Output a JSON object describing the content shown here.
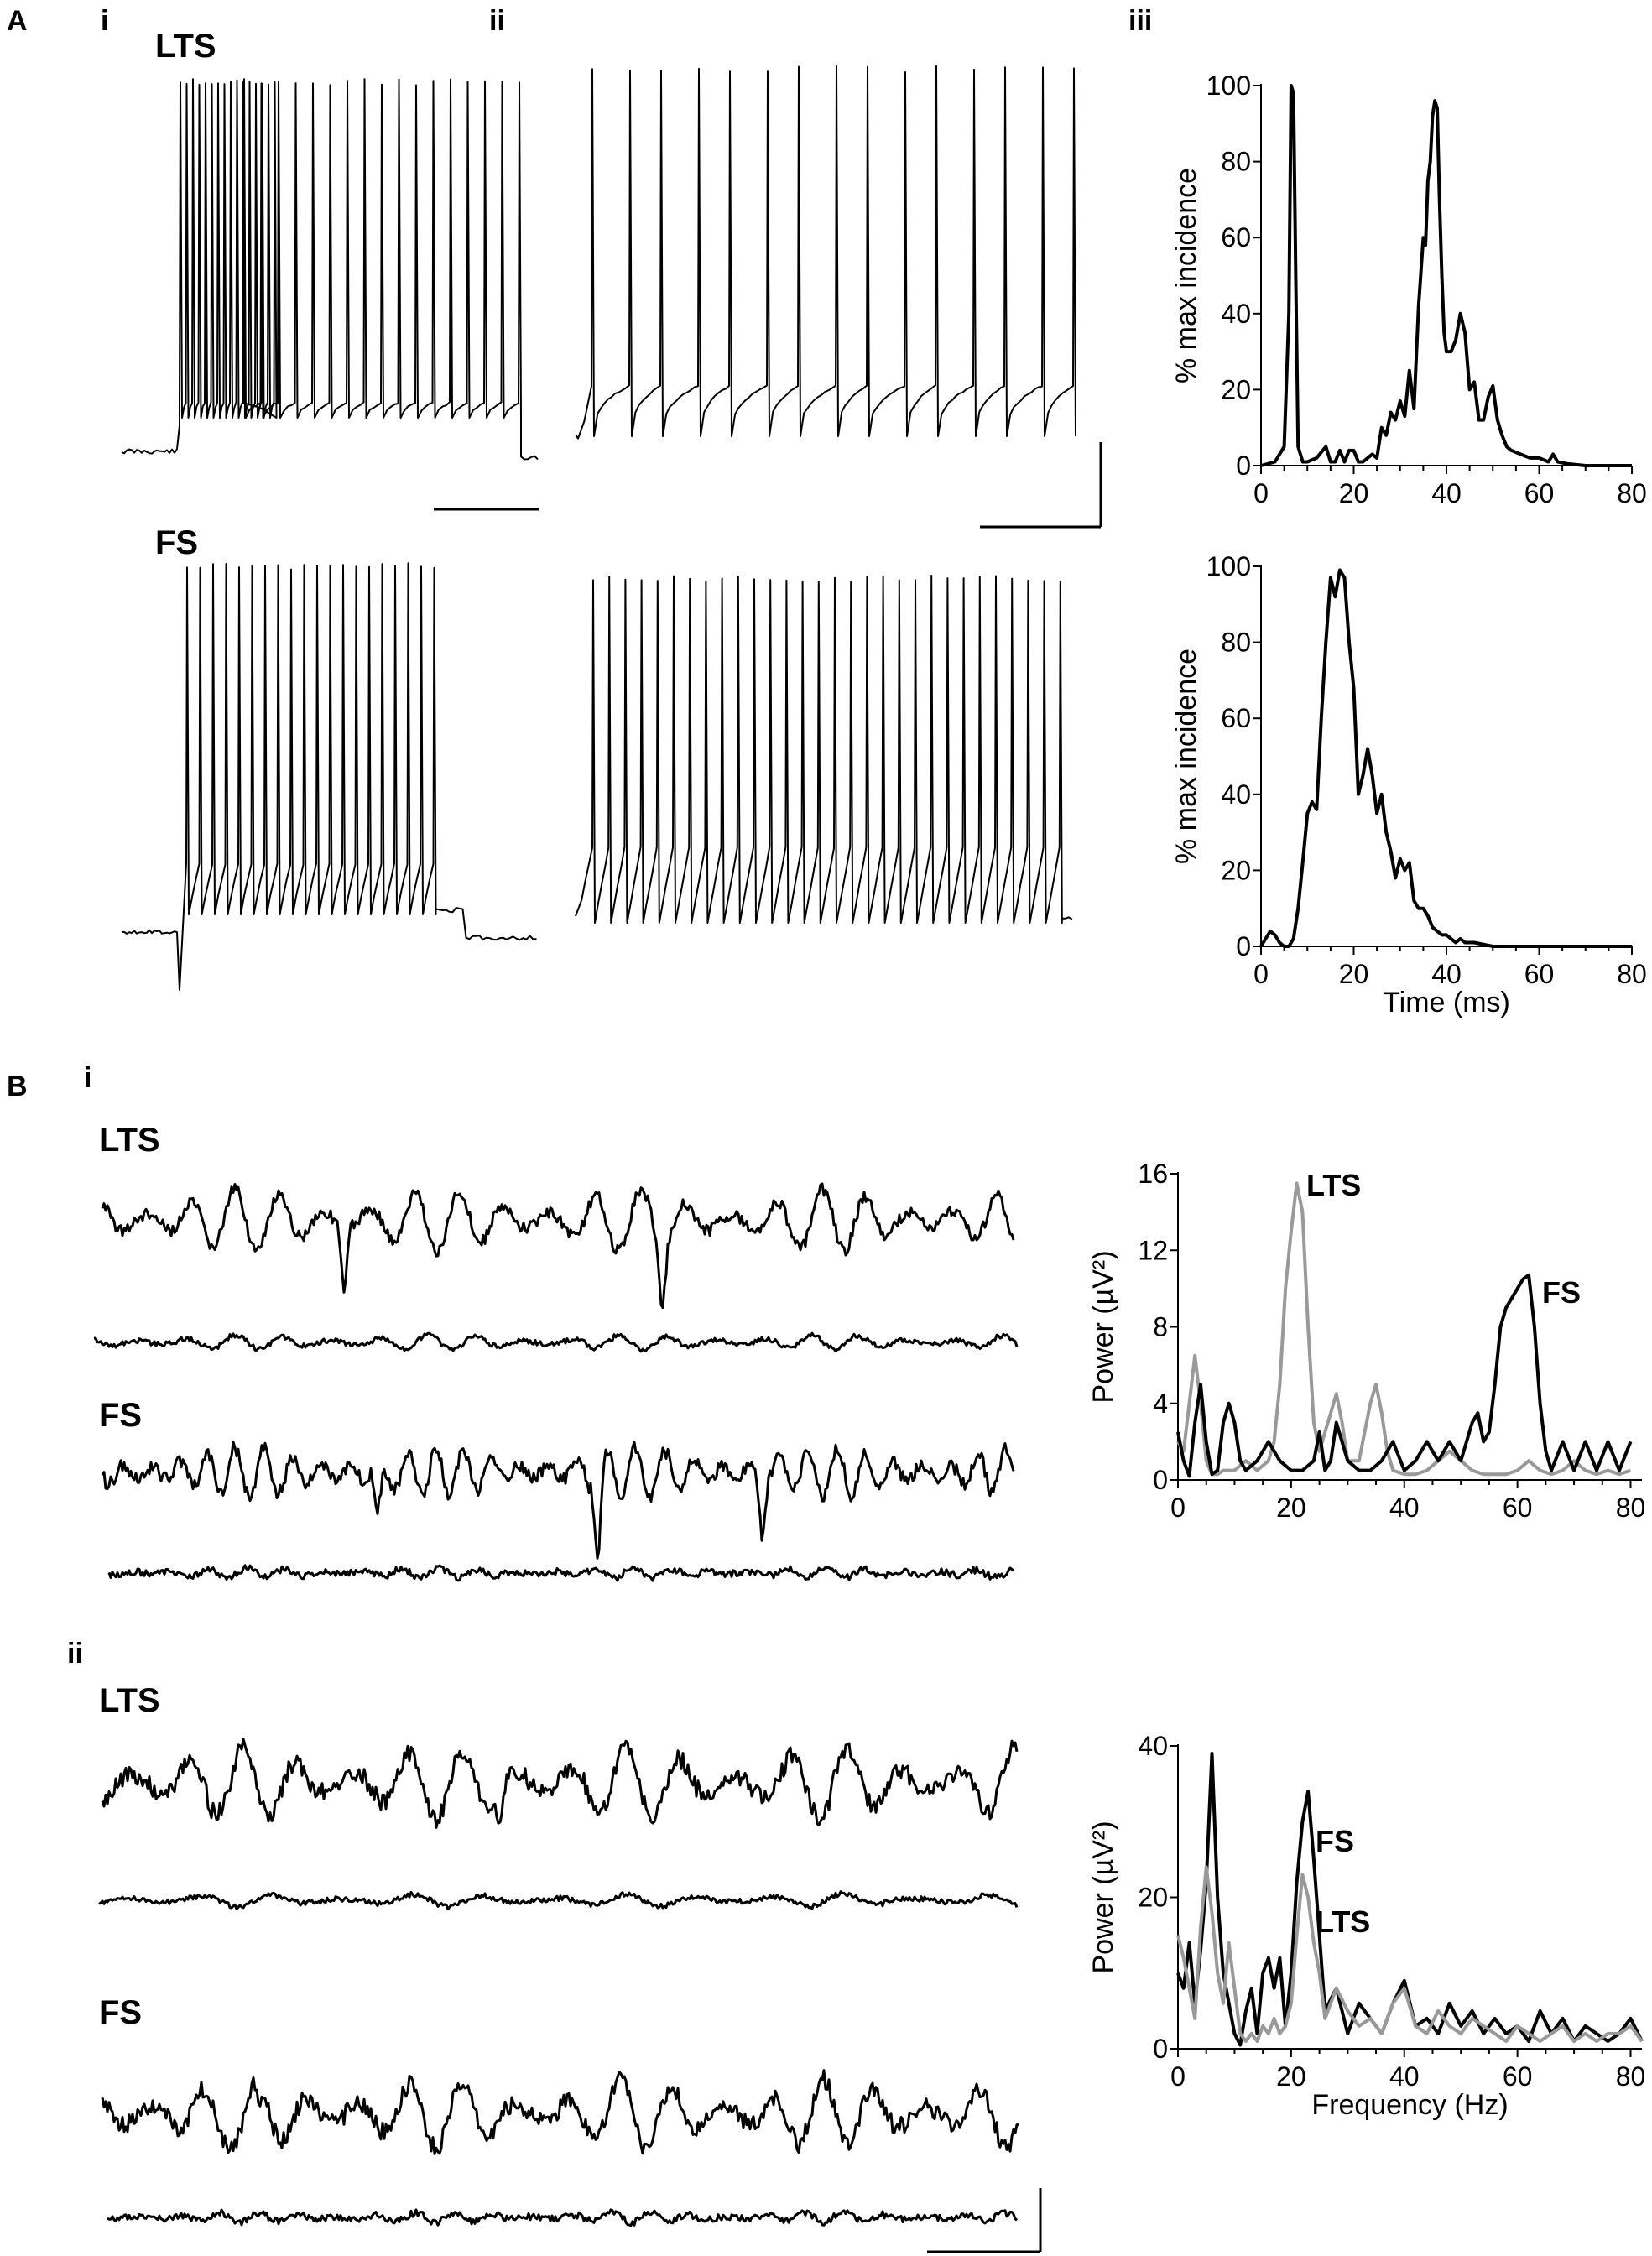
{
  "figure": {
    "panel_a": "A",
    "panel_b": "B",
    "sub_a_i": "i",
    "sub_a_ii": "ii",
    "sub_a_iii": "iii",
    "sub_b_i": "i",
    "sub_b_ii": "ii",
    "lts": "LTS",
    "fs": "FS"
  },
  "colors": {
    "black": "#000000",
    "gray": "#999999"
  },
  "chart_data": [
    {
      "id": "a_iii_lts",
      "type": "line",
      "title": "",
      "xlabel": "",
      "ylabel": "% max incidence",
      "xlim": [
        0,
        80
      ],
      "ylim": [
        0,
        100
      ],
      "xticks": [
        0,
        20,
        40,
        60,
        80
      ],
      "yticks": [
        0,
        20,
        40,
        60,
        80,
        100
      ],
      "series": [
        {
          "color": "#000000",
          "x": [
            0,
            3,
            5,
            6,
            6.5,
            7,
            7.5,
            8,
            9,
            10,
            12,
            14,
            15,
            16,
            17,
            18,
            19,
            20,
            21,
            22,
            24,
            25,
            26,
            27,
            28,
            29,
            30,
            31,
            32,
            33,
            34,
            35,
            35.5,
            36,
            36.5,
            37,
            37.5,
            38,
            38.5,
            39,
            39.5,
            40,
            41,
            42,
            43,
            44,
            45,
            46,
            47,
            48,
            49,
            50,
            51,
            52,
            53,
            54,
            56,
            58,
            60,
            62,
            63,
            64,
            66,
            70,
            80
          ],
          "y": [
            0,
            1,
            5,
            40,
            100,
            98,
            50,
            5,
            1,
            1,
            2,
            5,
            1,
            1,
            4,
            1,
            4,
            4,
            1,
            1,
            3,
            2,
            10,
            8,
            14,
            12,
            17,
            13,
            25,
            15,
            42,
            60,
            58,
            75,
            80,
            92,
            96,
            94,
            70,
            50,
            35,
            30,
            30,
            33,
            40,
            35,
            20,
            22,
            12,
            12,
            18,
            21,
            12,
            8,
            5,
            4,
            3,
            2,
            2,
            1,
            3,
            1,
            0.5,
            0,
            0
          ]
        }
      ]
    },
    {
      "id": "a_iii_fs",
      "type": "line",
      "title": "",
      "xlabel": "Time (ms)",
      "ylabel": "% max incidence",
      "xlim": [
        0,
        80
      ],
      "ylim": [
        0,
        100
      ],
      "xticks": [
        0,
        20,
        40,
        60,
        80
      ],
      "yticks": [
        0,
        20,
        40,
        60,
        80,
        100
      ],
      "series": [
        {
          "color": "#000000",
          "x": [
            0,
            1,
            2,
            3,
            4,
            5,
            6,
            7,
            8,
            9,
            10,
            11,
            12,
            13,
            14,
            15,
            16,
            17,
            18,
            19,
            20,
            21,
            22,
            23,
            24,
            25,
            26,
            27,
            28,
            29,
            30,
            31,
            32,
            33,
            34,
            35,
            36,
            37,
            38,
            39,
            40,
            41,
            42,
            43,
            44,
            45,
            46,
            48,
            50,
            55,
            60,
            70,
            80
          ],
          "y": [
            0,
            2,
            4,
            3,
            1,
            0,
            0,
            2,
            10,
            22,
            35,
            38,
            36,
            60,
            80,
            97,
            92,
            99,
            97,
            80,
            68,
            40,
            45,
            52,
            45,
            35,
            40,
            30,
            25,
            18,
            23,
            20,
            22,
            12,
            10,
            10,
            8,
            5,
            4,
            3,
            3,
            2,
            1,
            2,
            1,
            1,
            1,
            0.5,
            0,
            0,
            0,
            0,
            0
          ],
          "name": ""
        }
      ]
    },
    {
      "id": "b_i",
      "type": "line",
      "title": "",
      "xlabel": "",
      "ylabel": "Power (µV²)",
      "xlim": [
        0,
        82
      ],
      "ylim": [
        0,
        16
      ],
      "xticks": [
        0,
        20,
        40,
        60,
        80
      ],
      "yticks": [
        0,
        4,
        8,
        12,
        16
      ],
      "series": [
        {
          "name": "LTS",
          "color": "#999999",
          "x": [
            0,
            1,
            2,
            3,
            4,
            5,
            6,
            7,
            8,
            10,
            12,
            14,
            16,
            17,
            18,
            19,
            20,
            21,
            22,
            23,
            24,
            25,
            26,
            27,
            28,
            29,
            30,
            32,
            33,
            34,
            35,
            36,
            37,
            38,
            40,
            42,
            44,
            46,
            48,
            50,
            52,
            54,
            56,
            58,
            60,
            62,
            64,
            66,
            68,
            70,
            72,
            74,
            76,
            78,
            80
          ],
          "y": [
            2,
            1.5,
            4,
            6.5,
            4,
            1,
            0.3,
            0.3,
            0.5,
            0.5,
            1,
            0.5,
            1,
            2,
            5,
            10,
            13,
            15.5,
            14,
            8,
            3,
            1.5,
            2.5,
            3.5,
            4.5,
            3,
            1,
            1,
            2.5,
            4,
            5,
            3.5,
            1.5,
            0.5,
            0.3,
            0.3,
            0.5,
            1,
            1.5,
            1,
            0.5,
            0.3,
            0.3,
            0.3,
            0.5,
            1,
            0.5,
            0.3,
            0.5,
            1,
            0.5,
            0.3,
            0.5,
            0.3,
            0.5
          ]
        },
        {
          "name": "FS",
          "color": "#000000",
          "x": [
            0,
            1,
            2,
            3,
            4,
            5,
            6,
            7,
            8,
            9,
            10,
            11,
            12,
            14,
            16,
            18,
            20,
            22,
            24,
            25,
            26,
            27,
            28,
            30,
            32,
            34,
            36,
            38,
            40,
            42,
            44,
            46,
            48,
            50,
            52,
            53,
            54,
            55,
            56,
            57,
            58,
            59,
            60,
            61,
            62,
            63,
            64,
            65,
            66,
            68,
            70,
            72,
            74,
            76,
            78,
            80
          ],
          "y": [
            2.5,
            1,
            0.2,
            3,
            5,
            2,
            0.3,
            0.5,
            3,
            4,
            3,
            1,
            0.5,
            1,
            2,
            1,
            0.5,
            0.5,
            1,
            2.5,
            0.5,
            1,
            3,
            1,
            0.5,
            0.5,
            1,
            2,
            0.5,
            1,
            2,
            1,
            2,
            1,
            3,
            3.5,
            2,
            2.5,
            5,
            8,
            9,
            9.5,
            10,
            10.5,
            10.7,
            8,
            4,
            1.5,
            0.5,
            2,
            0.5,
            2,
            0.5,
            2,
            0.5,
            2
          ]
        }
      ]
    },
    {
      "id": "b_ii",
      "type": "line",
      "title": "",
      "xlabel": "Frequency (Hz)",
      "ylabel": "Power (µV²)",
      "xlim": [
        0,
        82
      ],
      "ylim": [
        0,
        40
      ],
      "xticks": [
        0,
        20,
        40,
        60,
        80
      ],
      "yticks": [
        0,
        20,
        40
      ],
      "series": [
        {
          "name": "FS",
          "color": "#000000",
          "x": [
            0,
            1,
            2,
            3,
            4,
            5,
            6,
            7,
            8,
            9,
            10,
            11,
            12,
            13,
            14,
            15,
            16,
            17,
            18,
            19,
            20,
            21,
            22,
            23,
            24,
            25,
            26,
            28,
            30,
            32,
            34,
            36,
            38,
            40,
            42,
            44,
            46,
            48,
            50,
            52,
            54,
            56,
            58,
            60,
            62,
            64,
            66,
            68,
            70,
            72,
            74,
            76,
            78,
            80,
            82
          ],
          "y": [
            10,
            8,
            14,
            6,
            13,
            22,
            39,
            20,
            10,
            6,
            2,
            0.5,
            5,
            8,
            2,
            10,
            12,
            8,
            12,
            3,
            10,
            22,
            30,
            34,
            25,
            15,
            5,
            8,
            2,
            6,
            4,
            2,
            6,
            9,
            3,
            4,
            2,
            6,
            3,
            5,
            2,
            4,
            2,
            3,
            1,
            5,
            2,
            4,
            1,
            3,
            2,
            1,
            2,
            4,
            1
          ]
        },
        {
          "name": "LTS",
          "color": "#999999",
          "x": [
            0,
            1,
            2,
            3,
            4,
            5,
            6,
            7,
            8,
            9,
            10,
            11,
            12,
            13,
            14,
            15,
            16,
            17,
            18,
            19,
            20,
            21,
            22,
            23,
            24,
            25,
            26,
            28,
            30,
            32,
            34,
            36,
            38,
            40,
            42,
            44,
            46,
            48,
            50,
            52,
            54,
            56,
            58,
            60,
            62,
            64,
            66,
            68,
            70,
            72,
            74,
            76,
            78,
            80,
            82
          ],
          "y": [
            15,
            12,
            8,
            4,
            16,
            24,
            18,
            10,
            6,
            14,
            8,
            2,
            1,
            2,
            1,
            3,
            2,
            4,
            2,
            3,
            6,
            15,
            23,
            20,
            14,
            10,
            4,
            8,
            5,
            3,
            4,
            2,
            6,
            8,
            3,
            2,
            5,
            3,
            2,
            4,
            3,
            2,
            1,
            3,
            2,
            1,
            2,
            3,
            1,
            2,
            1,
            2,
            2,
            3,
            1
          ]
        }
      ]
    }
  ]
}
